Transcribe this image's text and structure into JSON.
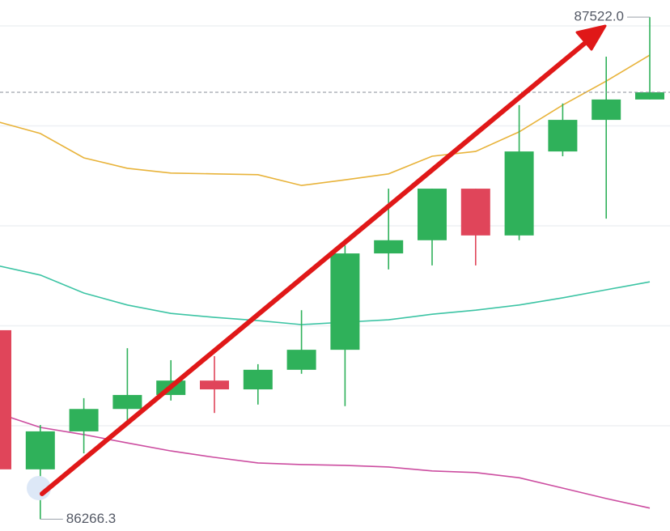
{
  "chart_data": {
    "type": "candlestick",
    "ylim": [
      86236.8,
      87564.8
    ],
    "yticks": [
      87500,
      87250,
      87000,
      86750,
      86500
    ],
    "grid": true,
    "up_color": "#2fb15a",
    "down_color": "#e0455a",
    "open": [
      86739,
      86391,
      86486,
      86542,
      86577,
      86613,
      86591,
      86640,
      86690,
      86931,
      86964,
      87093,
      86976,
      87186,
      87265,
      87316
    ],
    "high": [
      86739,
      86502,
      86569,
      86694,
      86664,
      86674,
      86654,
      86789,
      86951,
      87093,
      87093,
      87093,
      87302,
      87306,
      87423,
      87522.0
    ],
    "low": [
      86391,
      86266.3,
      86431,
      86512,
      86563,
      86532,
      86553,
      86630,
      86549,
      86891,
      86901,
      86901,
      86964,
      87174,
      87018,
      87316
    ],
    "close": [
      86391,
      86486,
      86542,
      86577,
      86613,
      86591,
      86640,
      86690,
      86931,
      86964,
      87093,
      86976,
      87186,
      87265,
      87316,
      87334
    ],
    "lines": [
      {
        "color": "#e8b33a",
        "values": [
          87261,
          87231,
          87170,
          87144,
          87132,
          87130,
          87128,
          87101,
          87115,
          87130,
          87174,
          87186,
          87235,
          87302,
          87362,
          87427
        ]
      },
      {
        "color": "#3cc4a4",
        "values": [
          86901,
          86877,
          86832,
          86802,
          86781,
          86771,
          86763,
          86753,
          86759,
          86765,
          86779,
          86789,
          86802,
          86820,
          86840,
          86860
        ]
      },
      {
        "color": "#cc4da0",
        "values": [
          86532,
          86496,
          86478,
          86457,
          86437,
          86421,
          86407,
          86403,
          86401,
          86397,
          86387,
          86383,
          86370,
          86344,
          86318,
          86294
        ]
      }
    ],
    "max_label": {
      "value": 87522.0,
      "label": "87522.0"
    },
    "min_label": {
      "value": 86266.3,
      "label": "86266.3"
    }
  }
}
